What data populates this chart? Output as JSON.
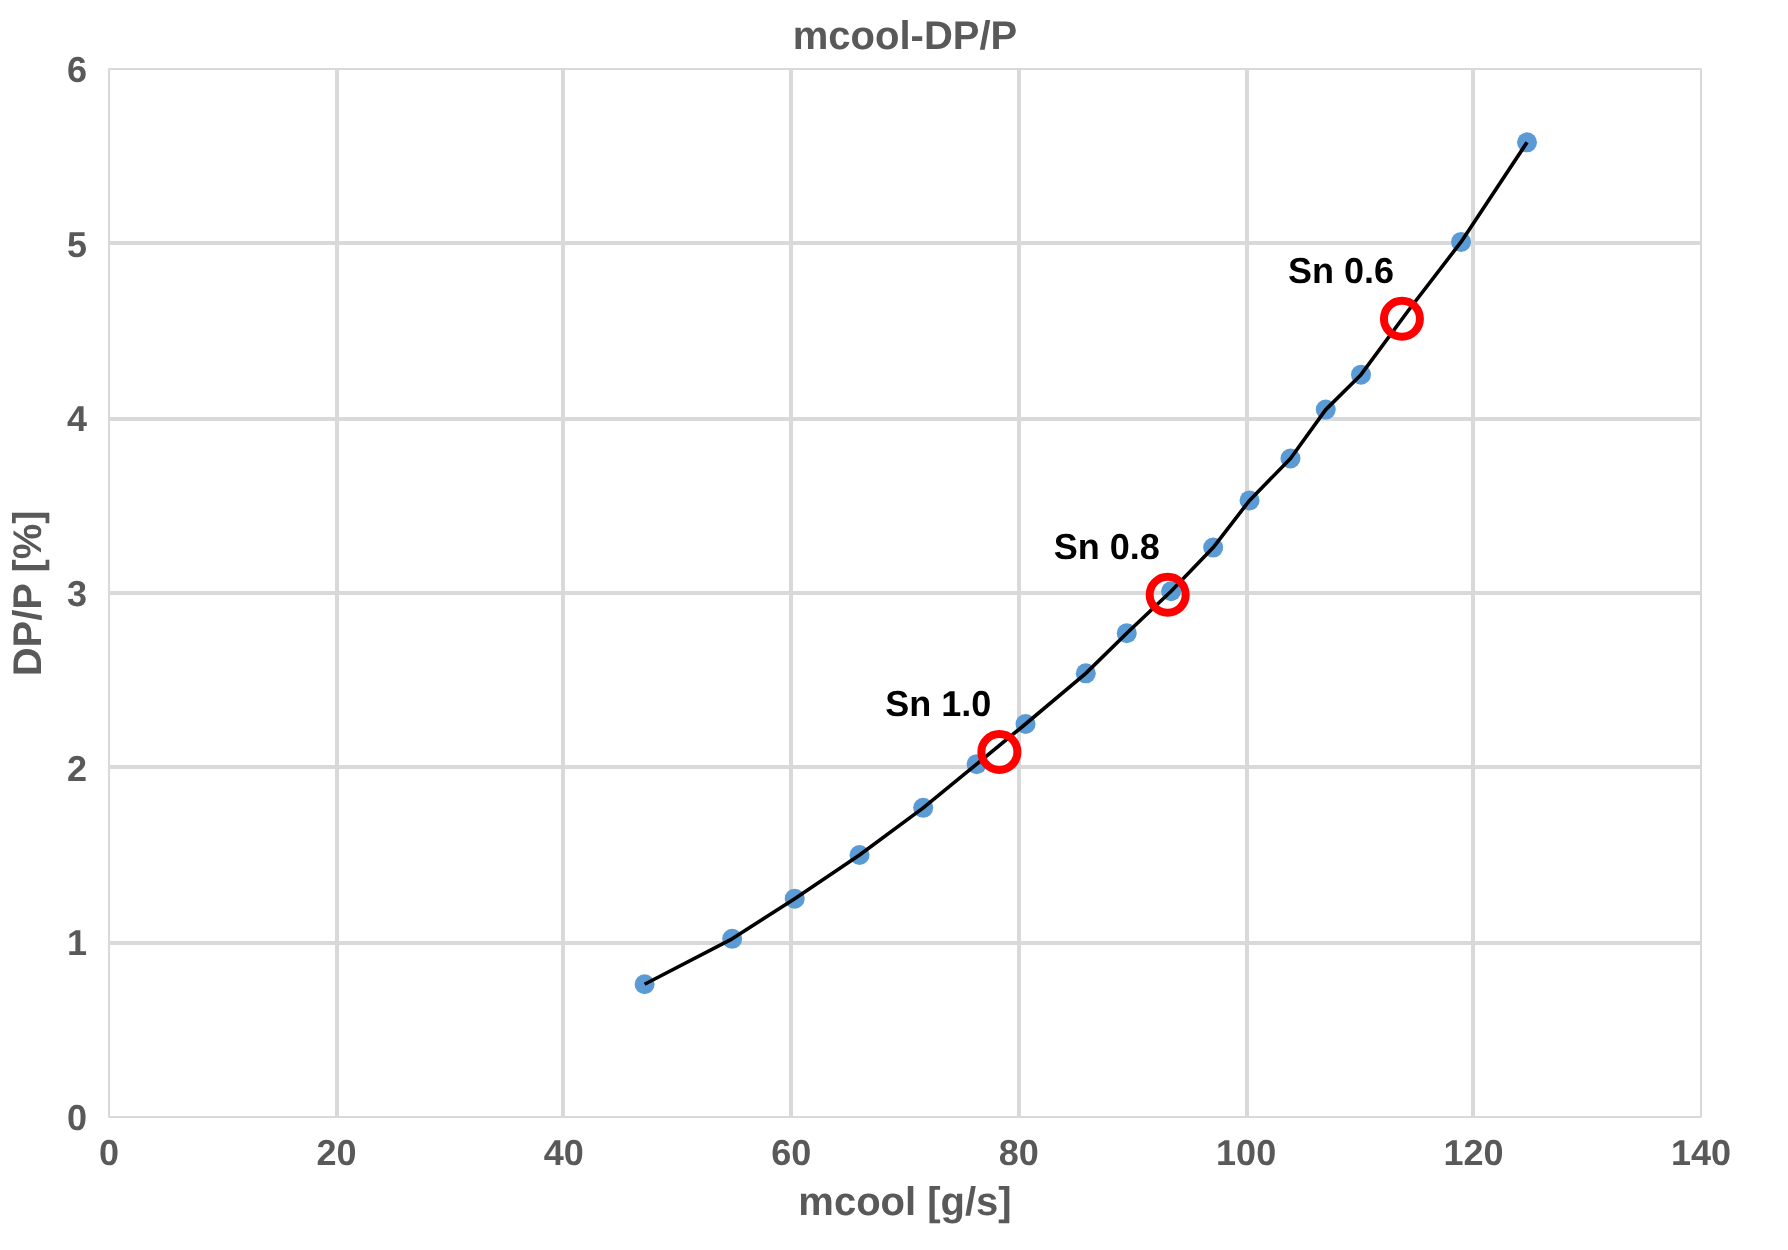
{
  "chart_data": {
    "type": "scatter",
    "title": "mcool-DP/P",
    "xlabel": "mcool [g/s]",
    "ylabel": "DP/P [%]",
    "xlim": [
      0,
      140
    ],
    "xticks": [
      0,
      20,
      40,
      60,
      80,
      100,
      120,
      140
    ],
    "ylim": [
      0,
      6
    ],
    "yticks": [
      0,
      1,
      2,
      3,
      4,
      5,
      6
    ],
    "grid": true,
    "series": [
      {
        "color": "#5b9bd5",
        "marker": "circle",
        "x": [
          47.1,
          54.8,
          60.3,
          66.0,
          71.6,
          76.3,
          80.6,
          85.9,
          89.5,
          93.4,
          97.1,
          100.3,
          103.9,
          107.0,
          110.1,
          114.3,
          118.9,
          124.7
        ],
        "values": [
          0.76,
          1.02,
          1.25,
          1.5,
          1.77,
          2.02,
          2.25,
          2.54,
          2.77,
          3.01,
          3.26,
          3.53,
          3.77,
          4.05,
          4.25,
          null,
          5.01,
          5.58
        ]
      },
      {
        "type": "line",
        "color": "#000000",
        "marker": "none",
        "line_style": "solid",
        "x": [
          47.1,
          54.8,
          60.3,
          66.0,
          71.6,
          76.3,
          80.6,
          85.9,
          89.5,
          93.4,
          97.1,
          100.3,
          103.9,
          107.0,
          110.1,
          114.3,
          118.9,
          124.7
        ],
        "values": [
          0.76,
          1.02,
          1.25,
          1.5,
          1.77,
          2.02,
          2.25,
          2.54,
          2.77,
          3.01,
          3.26,
          3.53,
          3.77,
          4.05,
          4.25,
          4.62,
          5.01,
          5.58
        ]
      },
      {
        "color": "#ff0000",
        "marker": "circle",
        "x": [
          78.3,
          93.1,
          113.7
        ],
        "values": [
          2.09,
          2.99,
          4.57
        ]
      }
    ],
    "annotations": [
      {
        "text": "Sn 1.0",
        "x": 78.3,
        "y": 2.09
      },
      {
        "text": "Sn 0.8",
        "x": 93.1,
        "y": 2.99
      },
      {
        "text": "Sn 0.6",
        "x": 113.7,
        "y": 4.57
      }
    ]
  }
}
